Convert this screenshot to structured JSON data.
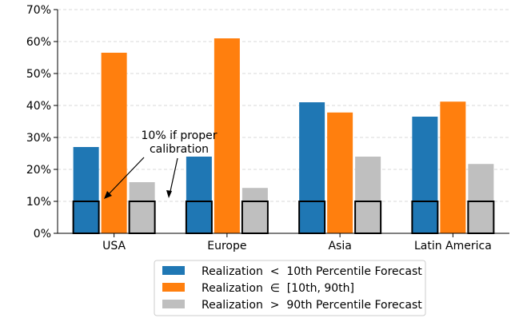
{
  "chart_data": {
    "type": "bar",
    "categories": [
      "USA",
      "Europe",
      "Asia",
      "Latin America"
    ],
    "series": [
      {
        "name": "Realization  <  10th Percentile Forecast",
        "color": "#1f77b4",
        "values": [
          27,
          24,
          41,
          36.5
        ]
      },
      {
        "name": "Realization  ∈  [10th, 90th]",
        "color": "#ff7f0e",
        "values": [
          56.5,
          61,
          37.8,
          41.2
        ]
      },
      {
        "name": "Realization  >  90th Percentile Forecast",
        "color": "#bfbfbf",
        "values": [
          16,
          14.2,
          24,
          21.7
        ]
      }
    ],
    "reference": {
      "value": 10,
      "style": "outlined boxes (no fill) on the outer series"
    },
    "ylim": [
      0,
      70
    ],
    "yticks": [
      0,
      10,
      20,
      30,
      40,
      50,
      60,
      70
    ],
    "ytick_labels": [
      "0%",
      "10%",
      "20%",
      "30%",
      "40%",
      "50%",
      "60%",
      "70%"
    ],
    "grid": "horizontal dashed",
    "legend_position": "bottom",
    "annotation": {
      "lines": [
        "10% if proper",
        "calibration"
      ]
    },
    "title": "",
    "xlabel": "",
    "ylabel": ""
  }
}
